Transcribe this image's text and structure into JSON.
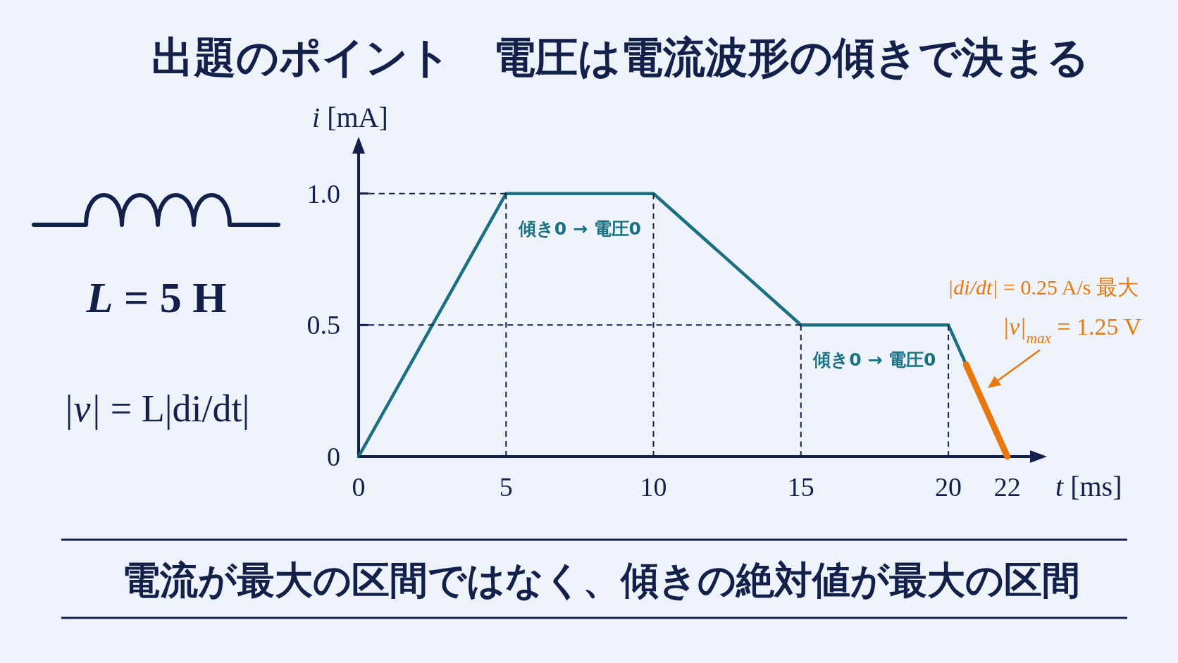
{
  "chart_data": {
    "type": "line",
    "title": "出題のポイント　電圧は電流波形の傾きで決まる",
    "xlabel": "t [ms]",
    "ylabel": "i [mA]",
    "xlim": [
      0,
      23.2
    ],
    "ylim": [
      0,
      1.2
    ],
    "xticks": [
      0,
      5,
      10,
      15,
      20,
      22
    ],
    "yticks": [
      0,
      0.5,
      {
        "value": 1,
        "label": "1.0"
      }
    ],
    "series": [
      {
        "color": "#1a6f80",
        "x": [
          0,
          5,
          10,
          15,
          20,
          22
        ],
        "values": [
          0,
          1,
          1,
          0.5,
          0.5,
          0
        ]
      },
      {
        "color": "#e8780e",
        "x": [
          20.6,
          22
        ],
        "values": [
          0.35,
          0
        ]
      },
      {
        "color": "#13204a",
        "line_style": "dashed",
        "x": [
          0,
          5
        ],
        "values": [
          1,
          1
        ]
      },
      {
        "color": "#13204a",
        "line_style": "dashed",
        "x": [
          5,
          5
        ],
        "values": [
          0,
          1
        ]
      },
      {
        "color": "#13204a",
        "line_style": "dashed",
        "x": [
          10,
          10
        ],
        "values": [
          0,
          1
        ]
      },
      {
        "color": "#13204a",
        "line_style": "dashed",
        "x": [
          0,
          15
        ],
        "values": [
          0.5,
          0.5
        ]
      },
      {
        "color": "#13204a",
        "line_style": "dashed",
        "x": [
          15,
          15
        ],
        "values": [
          0,
          0.5
        ]
      },
      {
        "color": "#13204a",
        "line_style": "dashed",
        "x": [
          20,
          20
        ],
        "values": [
          0,
          0.5
        ]
      }
    ],
    "annotations": [
      "L = 5 H",
      "|v| = L|di/dt|",
      {
        "text": "傾き0 → 電圧0",
        "x": 7.5,
        "y": 1
      },
      {
        "text": "傾き0 → 電圧0",
        "x": 17.5,
        "y": 0.5
      },
      "|di/dt| = 0.25 A/s 最大",
      {
        "text": "|v|$_{max}$ = 1.25 V",
        "x": 21,
        "y": 0.25
      },
      "電流が最大の区間ではなく、傾きの絶対値が最大の区間"
    ]
  }
}
